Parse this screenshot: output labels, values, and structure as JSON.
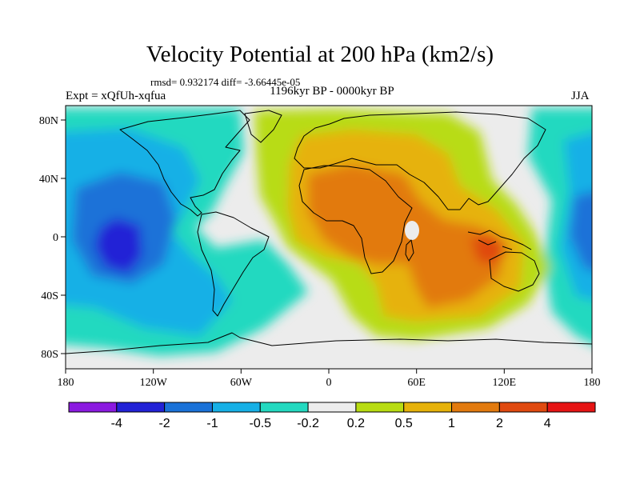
{
  "title": "Velocity Potential at 200 hPa (km2/s)",
  "stats": "rmsd= 0.932174 diff= -3.66445e-05",
  "period": "1196kyr BP - 0000kyr BP",
  "experiment": "Expt = xQfUh-xqfua",
  "season": "JJA",
  "axes": {
    "x_ticks": [
      "180",
      "120W",
      "60W",
      "0",
      "60E",
      "120E",
      "180"
    ],
    "y_ticks": [
      "80N",
      "40N",
      "0",
      "40S",
      "80S"
    ]
  },
  "colorbar": {
    "colors": [
      "#8b1ae0",
      "#2222d6",
      "#1a72d8",
      "#17b0e6",
      "#24d9c0",
      "#ececec",
      "#b8dc12",
      "#e6b20a",
      "#e27a0e",
      "#e04a10",
      "#e61414"
    ],
    "labels": [
      "-4",
      "-2",
      "-1",
      "-0.5",
      "-0.2",
      "0.2",
      "0.5",
      "1",
      "2",
      "4"
    ]
  },
  "field_colors": {
    "background": "#ececec",
    "neg_weak": "#24d9c0",
    "neg_mid": "#17b0e6",
    "neg_strong": "#1a72d8",
    "neg_max": "#2222d6",
    "pos_weak": "#b8dc12",
    "pos_mid": "#e6b20a",
    "pos_strong": "#e27a0e",
    "pos_max": "#e04a10"
  }
}
